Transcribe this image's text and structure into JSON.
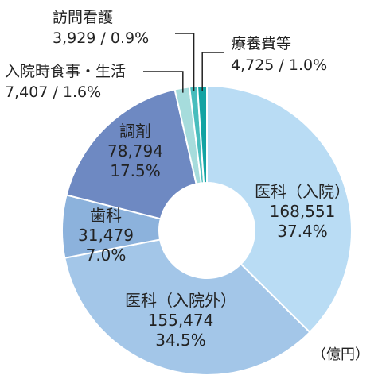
{
  "chart_data": {
    "type": "pie",
    "donut": true,
    "unit": "（億円）",
    "slices": [
      {
        "name": "医科（入院）",
        "value": "168,551",
        "percent": "37.4%",
        "color": "#b9dcf4"
      },
      {
        "name": "医科（入院外）",
        "value": "155,474",
        "percent": "34.5%",
        "color": "#a3c6e8"
      },
      {
        "name": "歯科",
        "value": "31,479",
        "percent": "7.0%",
        "color": "#8cb2dc"
      },
      {
        "name": "調剤",
        "value": "78,794",
        "percent": "17.5%",
        "color": "#6e89c2"
      },
      {
        "name": "入院時食事・生活",
        "value": "7,407",
        "percent": "1.6%",
        "color": "#a6dcdc"
      },
      {
        "name": "訪問看護",
        "value": "3,929",
        "percent": "0.9%",
        "color": "#48bdbd"
      },
      {
        "name": "療養費等",
        "value": "4,725",
        "percent": "1.0%",
        "color": "#12a3a3"
      }
    ]
  }
}
